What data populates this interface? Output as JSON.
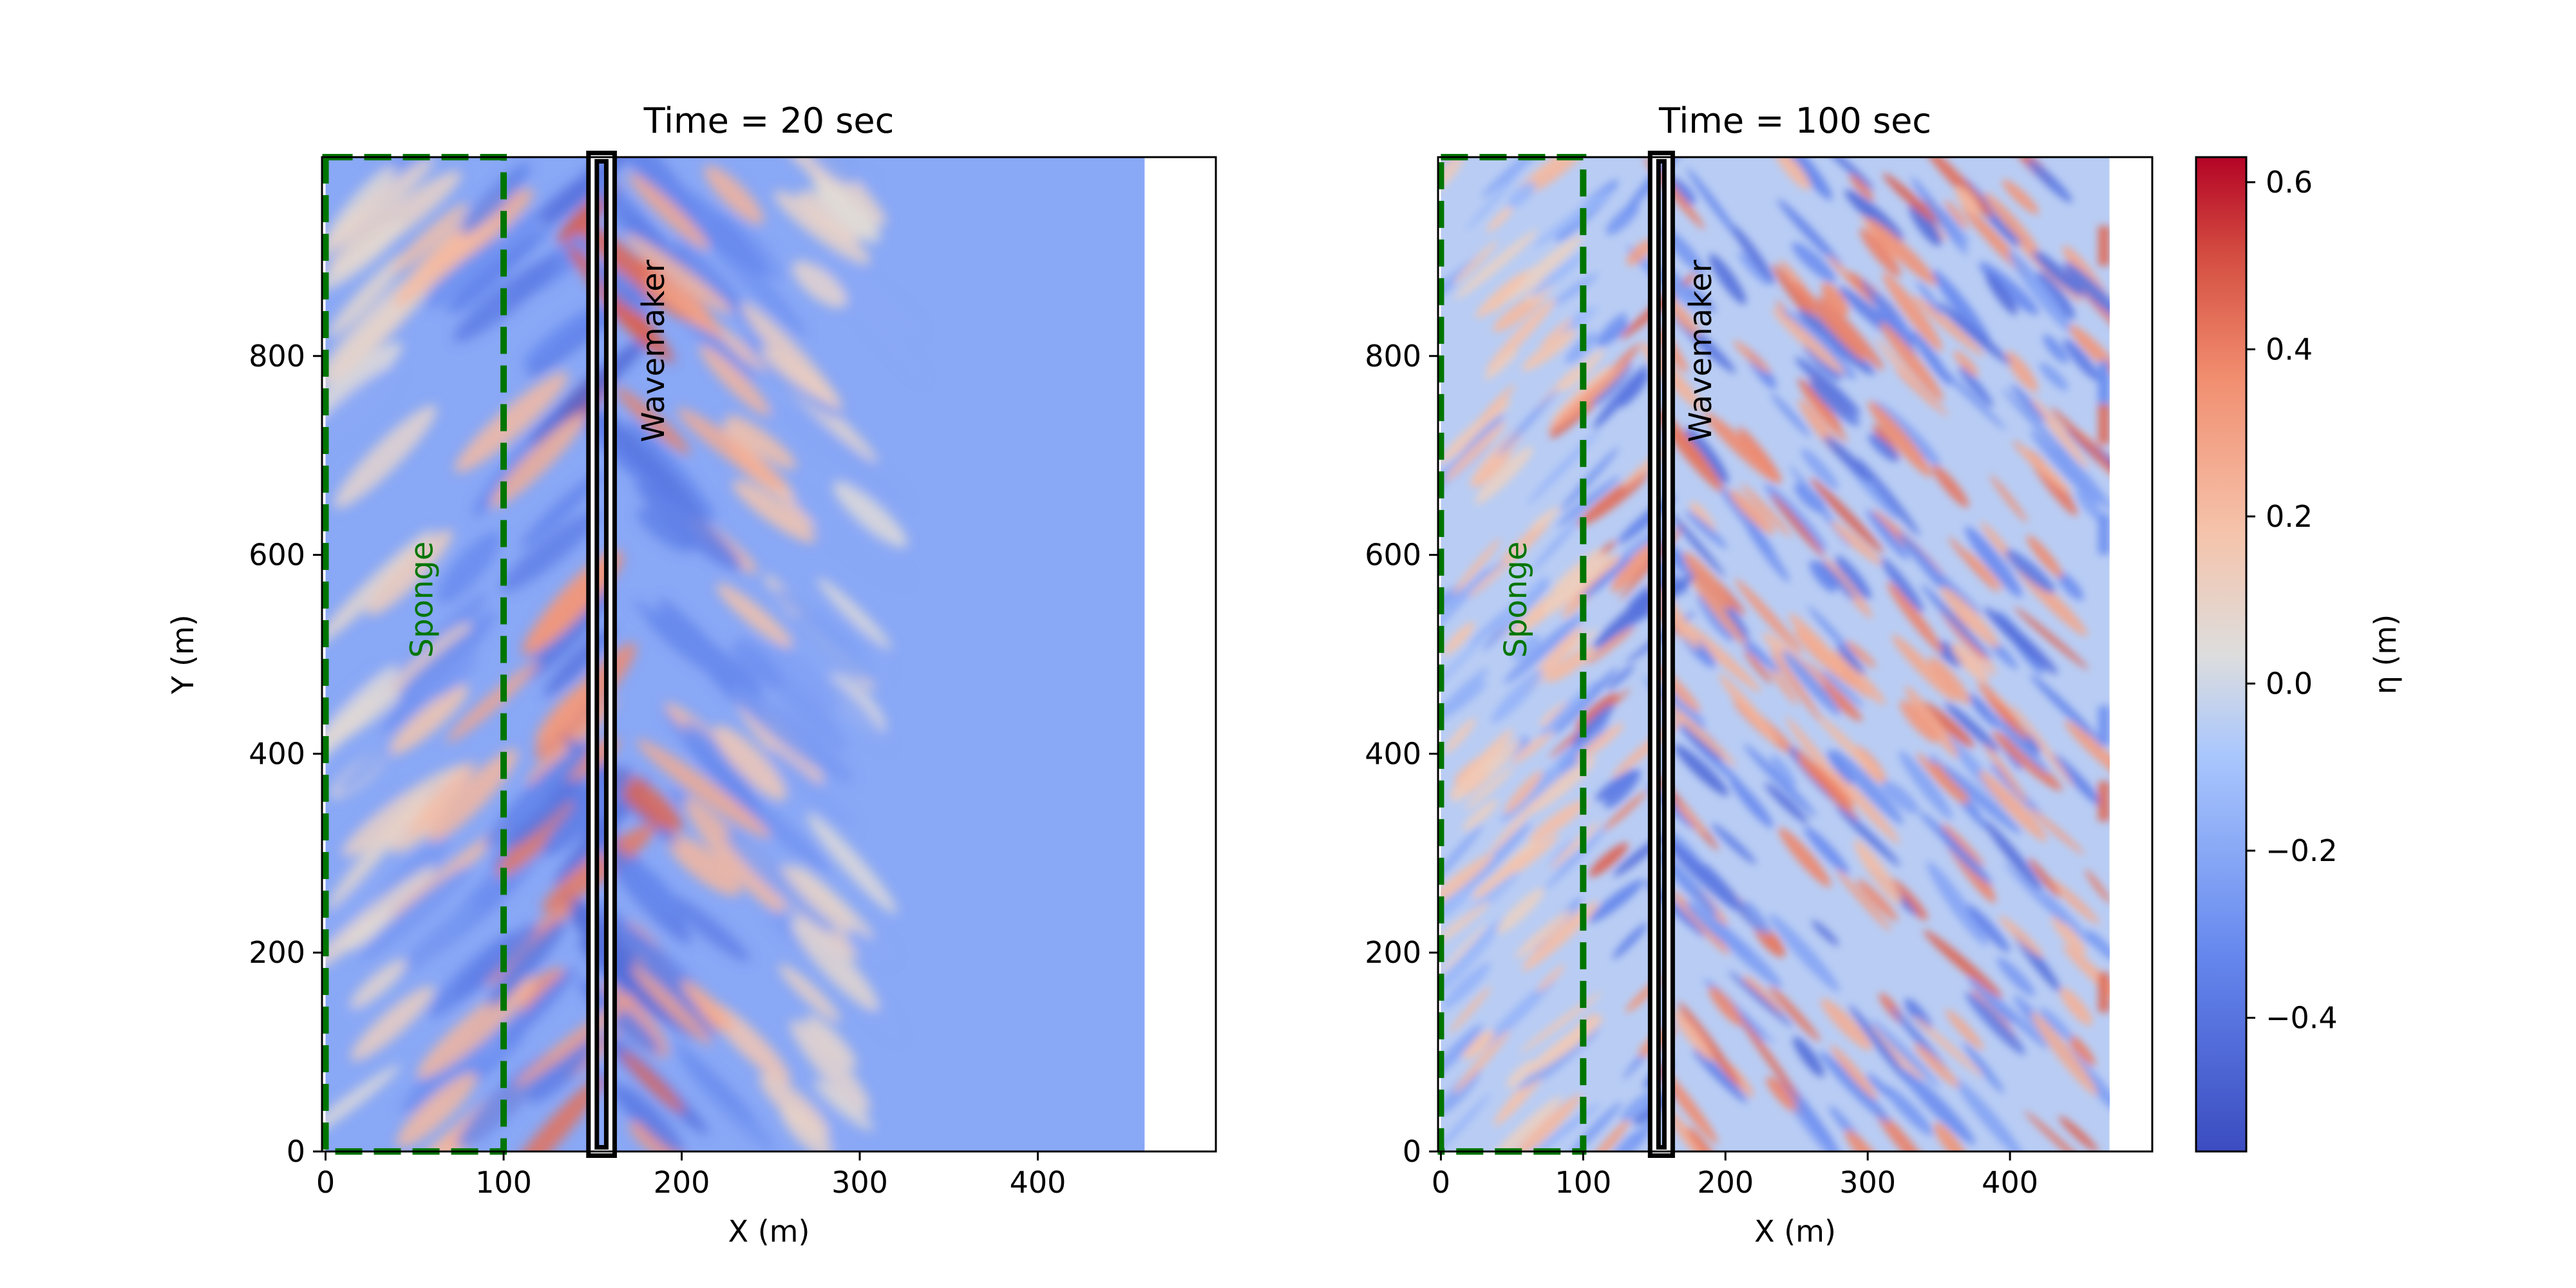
{
  "figure": {
    "colorbar": {
      "label": "η (m)",
      "range": [
        -0.56,
        0.63
      ],
      "ticks": [
        -0.4,
        -0.2,
        0.0,
        0.2,
        0.4,
        0.6
      ],
      "tick_labels": [
        "−0.4",
        "−0.2",
        "0.0",
        "0.2",
        "0.4",
        "0.6"
      ],
      "colormap": "coolwarm",
      "colors": {
        "low": "#3b4cc0",
        "mid": "#dddddd",
        "high": "#b40426"
      }
    }
  },
  "chart_data": [
    {
      "type": "heatmap",
      "title": "Time = 20 sec",
      "xlabel": "X (m)",
      "ylabel": "Y (m)",
      "xlim": [
        -2,
        500
      ],
      "ylim": [
        0,
        1000
      ],
      "xticks": [
        0,
        100,
        200,
        300,
        400
      ],
      "yticks": [
        0,
        200,
        400,
        600,
        800
      ],
      "tick_labels": {
        "x": [
          "0",
          "100",
          "200",
          "300",
          "400"
        ],
        "y": [
          "0",
          "200",
          "400",
          "600",
          "800"
        ]
      },
      "field_extent_x": [
        0,
        460
      ],
      "field": "surface elevation η",
      "value_range": [
        -0.56,
        0.63
      ],
      "still_water_value": -0.2,
      "sponge": {
        "label": "Sponge",
        "x": [
          0,
          100
        ],
        "y": [
          0,
          1000
        ],
        "color": "#007500"
      },
      "wavemaker": {
        "label": "Wavemaker",
        "x": [
          150,
          160
        ],
        "y": [
          0,
          1000
        ]
      }
    },
    {
      "type": "heatmap",
      "title": "Time = 100 sec",
      "xlabel": "X (m)",
      "ylabel": "",
      "xlim": [
        -2,
        500
      ],
      "ylim": [
        0,
        1000
      ],
      "xticks": [
        0,
        100,
        200,
        300,
        400
      ],
      "yticks": [
        0,
        200,
        400,
        600,
        800
      ],
      "tick_labels": {
        "x": [
          "0",
          "100",
          "200",
          "300",
          "400"
        ],
        "y": [
          "0",
          "200",
          "400",
          "600",
          "800"
        ]
      },
      "field_extent_x": [
        0,
        470
      ],
      "field": "surface elevation η",
      "value_range": [
        -0.56,
        0.63
      ],
      "sponge": {
        "label": "Sponge",
        "x": [
          0,
          100
        ],
        "y": [
          0,
          1000
        ],
        "color": "#007500"
      },
      "wavemaker": {
        "label": "Wavemaker",
        "x": [
          150,
          160
        ],
        "y": [
          0,
          1000
        ]
      }
    }
  ]
}
